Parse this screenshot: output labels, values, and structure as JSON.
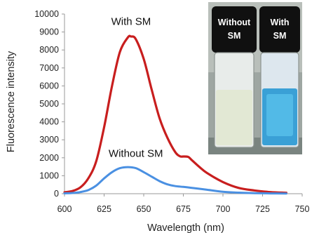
{
  "chart_data": {
    "type": "line",
    "xlabel": "Wavelength (nm)",
    "ylabel": "Fluorescence intensity",
    "xlim": [
      600,
      750
    ],
    "ylim": [
      0,
      10000
    ],
    "xticks": [
      600,
      625,
      650,
      675,
      700,
      725,
      750
    ],
    "yticks": [
      0,
      1000,
      2000,
      3000,
      4000,
      5000,
      6000,
      7000,
      8000,
      9000,
      10000
    ],
    "series": [
      {
        "name": "With SM",
        "color": "#c81e1e",
        "x": [
          600,
          605,
          610,
          615,
          620,
          625,
          630,
          635,
          640,
          642,
          645,
          650,
          655,
          660,
          665,
          670,
          673,
          675,
          678,
          680,
          685,
          690,
          700,
          710,
          720,
          730,
          740
        ],
        "y": [
          80,
          150,
          350,
          850,
          1800,
          3700,
          6000,
          7900,
          8700,
          8750,
          8600,
          7500,
          5800,
          4200,
          3100,
          2300,
          2080,
          2070,
          2050,
          1900,
          1500,
          1150,
          650,
          320,
          180,
          90,
          50
        ]
      },
      {
        "name": "Without SM",
        "color": "#4a90e2",
        "x": [
          600,
          605,
          610,
          615,
          620,
          625,
          630,
          635,
          640,
          645,
          650,
          655,
          660,
          665,
          670,
          675,
          680,
          690,
          700,
          710,
          720,
          730,
          740
        ],
        "y": [
          20,
          40,
          90,
          200,
          450,
          850,
          1200,
          1420,
          1480,
          1420,
          1200,
          950,
          700,
          520,
          420,
          380,
          330,
          220,
          110,
          60,
          30,
          15,
          10
        ]
      }
    ],
    "annotations": [
      {
        "text": "With SM",
        "x": 642,
        "y": 9400
      },
      {
        "text": "Without SM",
        "x": 645,
        "y": 2050
      }
    ]
  },
  "inset_photo": {
    "left_vial_label": [
      "Without",
      "SM"
    ],
    "right_vial_label": [
      "With",
      "SM"
    ]
  }
}
